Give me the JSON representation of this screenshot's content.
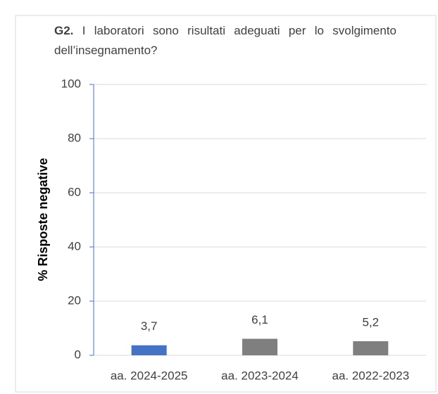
{
  "chart_data": {
    "type": "bar",
    "title_prefix": "G2.",
    "title": "I laboratori sono risultati adeguati per lo svolgimento dell’insegnamento?",
    "ylabel": "% Risposte negative",
    "categories": [
      "aa. 2024-2025",
      "aa. 2023-2024",
      "aa. 2022-2023"
    ],
    "values": [
      3.7,
      6.1,
      5.2
    ],
    "value_labels": [
      "3,7",
      "6,1",
      "5,2"
    ],
    "colors": [
      "#4472c4",
      "#7f7f7f",
      "#7f7f7f"
    ],
    "ylim": [
      0,
      100
    ],
    "yticks": [
      0,
      20,
      40,
      60,
      80,
      100
    ],
    "grid": true
  }
}
